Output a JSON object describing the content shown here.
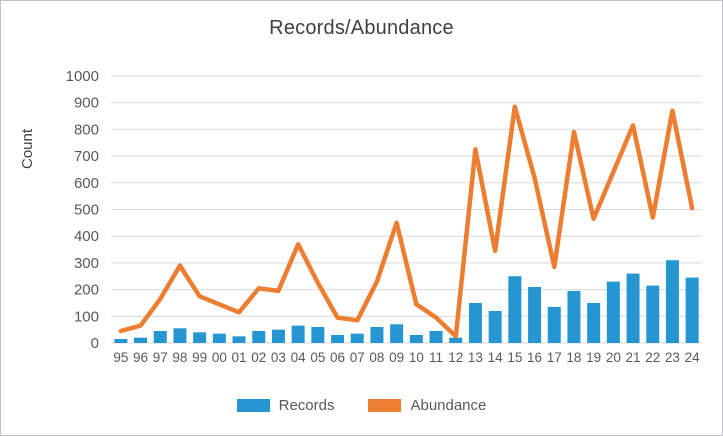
{
  "chart": {
    "colors": {
      "records_blue": "#2696D3",
      "abundance_orange": "#ED7D31",
      "gridline": "#D9D9D9",
      "axis_text": "#595959",
      "title_text": "#404040",
      "border": "#BFC0C2",
      "background": "#FFFFFF"
    }
  },
  "chart_data": {
    "type": "bar+line combo",
    "title": "Records/Abundance",
    "xlabel": "",
    "ylabel": "Count",
    "ylim": [
      0,
      1000
    ],
    "ytick_step": 100,
    "grid": true,
    "legend_position": "bottom",
    "categories": [
      "95",
      "96",
      "97",
      "98",
      "99",
      "00",
      "01",
      "02",
      "03",
      "04",
      "05",
      "06",
      "07",
      "08",
      "09",
      "10",
      "11",
      "12",
      "13",
      "14",
      "15",
      "16",
      "17",
      "18",
      "19",
      "20",
      "21",
      "22",
      "23",
      "24"
    ],
    "series": [
      {
        "name": "Records",
        "type": "bar",
        "color": "#2696D3",
        "values": [
          15,
          20,
          45,
          55,
          40,
          35,
          25,
          45,
          50,
          65,
          60,
          30,
          35,
          60,
          70,
          30,
          45,
          20,
          150,
          120,
          250,
          210,
          135,
          195,
          150,
          230,
          260,
          215,
          310,
          245
        ]
      },
      {
        "name": "Abundance",
        "type": "line",
        "color": "#ED7D31",
        "values": [
          45,
          65,
          165,
          290,
          175,
          145,
          115,
          205,
          195,
          370,
          225,
          95,
          85,
          230,
          450,
          145,
          95,
          25,
          725,
          345,
          885,
          620,
          285,
          790,
          465,
          640,
          815,
          470,
          870,
          505
        ]
      }
    ]
  }
}
